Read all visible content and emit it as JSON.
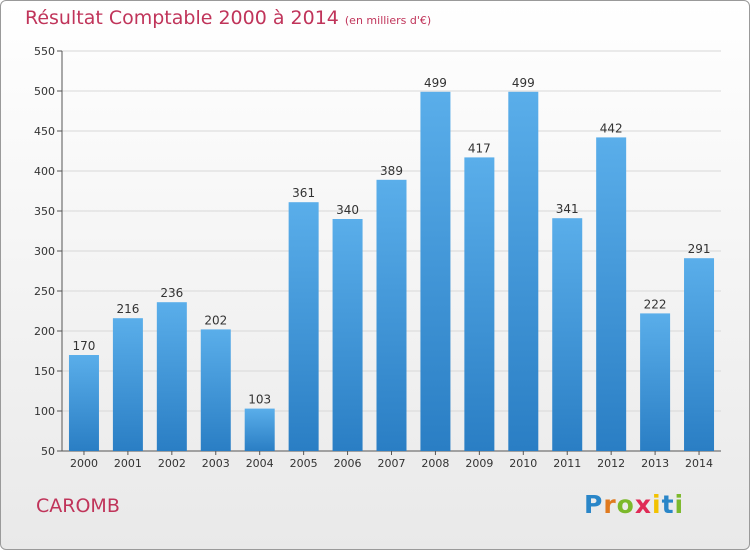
{
  "chart_data": {
    "type": "bar",
    "title": "Résultat Comptable 2000 à 2014",
    "subtitle": "(en milliers d'€)",
    "categories": [
      "2000",
      "2001",
      "2002",
      "2003",
      "2004",
      "2005",
      "2006",
      "2007",
      "2008",
      "2009",
      "2010",
      "2011",
      "2012",
      "2013",
      "2014"
    ],
    "values": [
      170,
      216,
      236,
      202,
      103,
      361,
      340,
      389,
      499,
      417,
      499,
      341,
      442,
      222,
      291
    ],
    "ylim": [
      50,
      550
    ],
    "yticks": [
      50,
      100,
      150,
      200,
      250,
      300,
      350,
      400,
      450,
      500,
      550
    ],
    "xlabel": "",
    "ylabel": "",
    "grid": true,
    "colors": {
      "bar_light": "#5aaeea",
      "bar_dark": "#2a7ec4",
      "title": "#c0345a",
      "grid": "#d8d8d8"
    }
  },
  "footer": {
    "commune": "CAROMB",
    "logo_letters": [
      "P",
      "r",
      "o",
      "x",
      "i",
      "t",
      "i"
    ],
    "logo_colors": [
      "#2a86c8",
      "#e07a1f",
      "#7cb92b",
      "#e02b56",
      "#f2c200",
      "#2a86c8",
      "#7cb92b"
    ]
  }
}
